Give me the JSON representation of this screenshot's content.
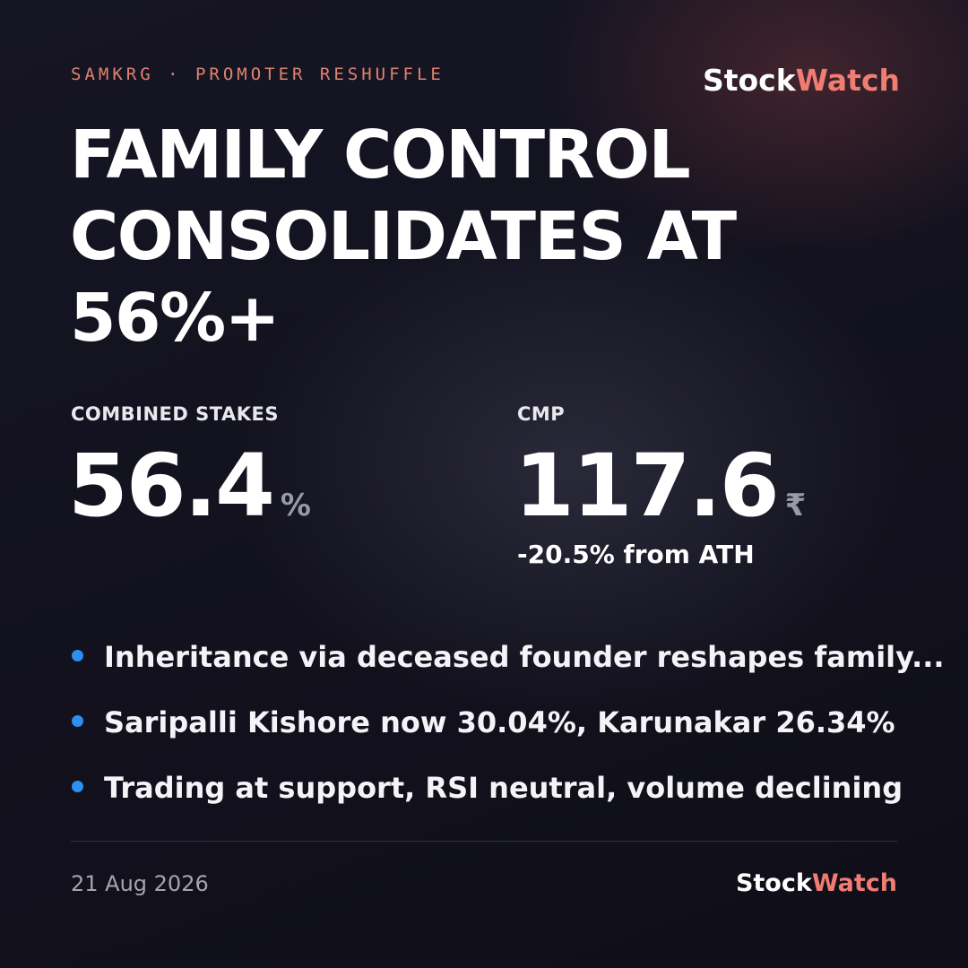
{
  "header": {
    "kicker": "SAMKRG · PROMOTER RESHUFFLE",
    "brand": {
      "primary": "Stock",
      "accent": "Watch"
    }
  },
  "title_lines": [
    "FAMILY CONTROL",
    "CONSOLIDATES AT",
    "56%+"
  ],
  "stats": [
    {
      "label": "COMBINED STAKES",
      "value": 56.4,
      "unit": "%"
    },
    {
      "label": "CMP",
      "value": 117.6,
      "unit": "₹",
      "note": "-20.5% from ATH"
    }
  ],
  "bullets": [
    "Inheritance via deceased founder reshapes family...",
    "Saripalli Kishore now 30.04%, Karunakar 26.34%",
    "Trading at support, RSI neutral, volume declining"
  ],
  "footer": {
    "date": "21 Aug 2026",
    "brand": {
      "primary": "Stock",
      "accent": "Watch"
    }
  }
}
